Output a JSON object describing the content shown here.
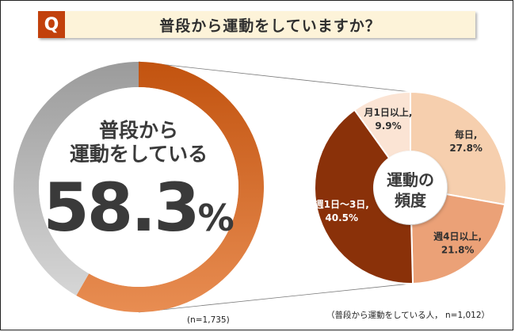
{
  "question_badge": "Q",
  "title": "普段から運動をしていますか？",
  "chart_data": [
    {
      "type": "pie",
      "style": "donut",
      "center_label_line1": "普段から",
      "center_label_line2": "運動をしている",
      "center_value": "58.3",
      "center_unit": "%",
      "slices": [
        {
          "label": "普段から運動をしている",
          "value": 58.3,
          "color": "#c2530f"
        },
        {
          "label": "",
          "value": 41.7,
          "color": "#bdbdbd"
        }
      ],
      "sample_note": "(n=1,735)"
    },
    {
      "type": "pie",
      "style": "donut",
      "center_label_line1": "運動の",
      "center_label_line2": "頻度",
      "slices": [
        {
          "label": "毎日,",
          "value_text": "27.8%",
          "value": 27.8,
          "color": "#f6cfae"
        },
        {
          "label": "週4日以上,",
          "value_text": "21.8%",
          "value": 21.8,
          "color": "#eba177"
        },
        {
          "label": "週1日～3日,",
          "value_text": "40.5%",
          "value": 40.5,
          "color": "#8a3109"
        },
        {
          "label": "月1日以上,",
          "value_text": "9.9%",
          "value": 9.9,
          "color": "#fbe4d4"
        }
      ],
      "sample_note": "（普段から運動をしている人，  n=1,012）"
    }
  ]
}
